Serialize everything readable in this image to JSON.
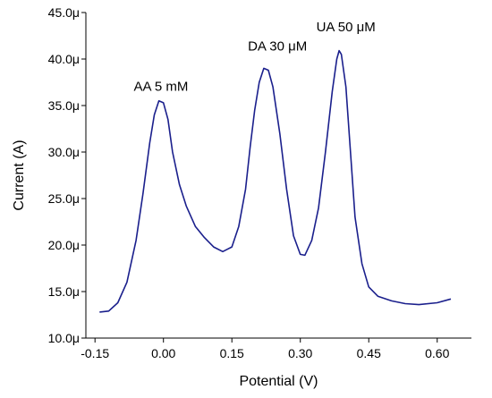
{
  "chart_data": {
    "type": "line",
    "title": "",
    "xlabel": "Potential (V)",
    "ylabel": "Current (A)",
    "xlim": [
      -0.17,
      0.675
    ],
    "ylim": [
      10.0,
      45.0
    ],
    "x_ticks": [
      -0.15,
      0.0,
      0.15,
      0.3,
      0.45,
      0.6
    ],
    "x_tick_labels": [
      "-0.15",
      "0.00",
      "0.15",
      "0.30",
      "0.45",
      "0.60"
    ],
    "y_ticks": [
      10,
      15,
      20,
      25,
      30,
      35,
      40,
      45
    ],
    "y_tick_labels": [
      "10.0μ",
      "15.0μ",
      "20.0μ",
      "25.0μ",
      "30.0μ",
      "35.0μ",
      "40.0μ",
      "45.0μ"
    ],
    "grid": false,
    "series": [
      {
        "color": "#1a1f8c",
        "points": [
          [
            -0.14,
            12.8
          ],
          [
            -0.12,
            12.9
          ],
          [
            -0.1,
            13.8
          ],
          [
            -0.08,
            16.0
          ],
          [
            -0.06,
            20.5
          ],
          [
            -0.045,
            25.5
          ],
          [
            -0.03,
            31.0
          ],
          [
            -0.02,
            34.0
          ],
          [
            -0.01,
            35.5
          ],
          [
            0.0,
            35.3
          ],
          [
            0.01,
            33.5
          ],
          [
            0.02,
            30.0
          ],
          [
            0.035,
            26.5
          ],
          [
            0.05,
            24.2
          ],
          [
            0.07,
            22.0
          ],
          [
            0.09,
            20.8
          ],
          [
            0.11,
            19.8
          ],
          [
            0.13,
            19.3
          ],
          [
            0.15,
            19.8
          ],
          [
            0.165,
            22.0
          ],
          [
            0.18,
            26.0
          ],
          [
            0.19,
            30.5
          ],
          [
            0.2,
            34.5
          ],
          [
            0.21,
            37.5
          ],
          [
            0.22,
            39.0
          ],
          [
            0.23,
            38.8
          ],
          [
            0.24,
            37.0
          ],
          [
            0.255,
            32.0
          ],
          [
            0.27,
            26.0
          ],
          [
            0.285,
            21.0
          ],
          [
            0.3,
            19.0
          ],
          [
            0.31,
            18.9
          ],
          [
            0.325,
            20.5
          ],
          [
            0.34,
            24.0
          ],
          [
            0.355,
            30.0
          ],
          [
            0.37,
            36.5
          ],
          [
            0.38,
            40.0
          ],
          [
            0.385,
            40.9
          ],
          [
            0.39,
            40.5
          ],
          [
            0.4,
            37.0
          ],
          [
            0.41,
            30.0
          ],
          [
            0.42,
            23.0
          ],
          [
            0.435,
            18.0
          ],
          [
            0.45,
            15.5
          ],
          [
            0.47,
            14.5
          ],
          [
            0.5,
            14.0
          ],
          [
            0.53,
            13.7
          ],
          [
            0.56,
            13.6
          ],
          [
            0.6,
            13.8
          ],
          [
            0.63,
            14.2
          ]
        ]
      }
    ],
    "annotations": [
      {
        "text": "AA 5 mM",
        "x": -0.065,
        "y": 36.6
      },
      {
        "text": "DA 30 μM",
        "x": 0.185,
        "y": 40.9
      },
      {
        "text": "UA 50 μM",
        "x": 0.335,
        "y": 43.0
      }
    ]
  }
}
